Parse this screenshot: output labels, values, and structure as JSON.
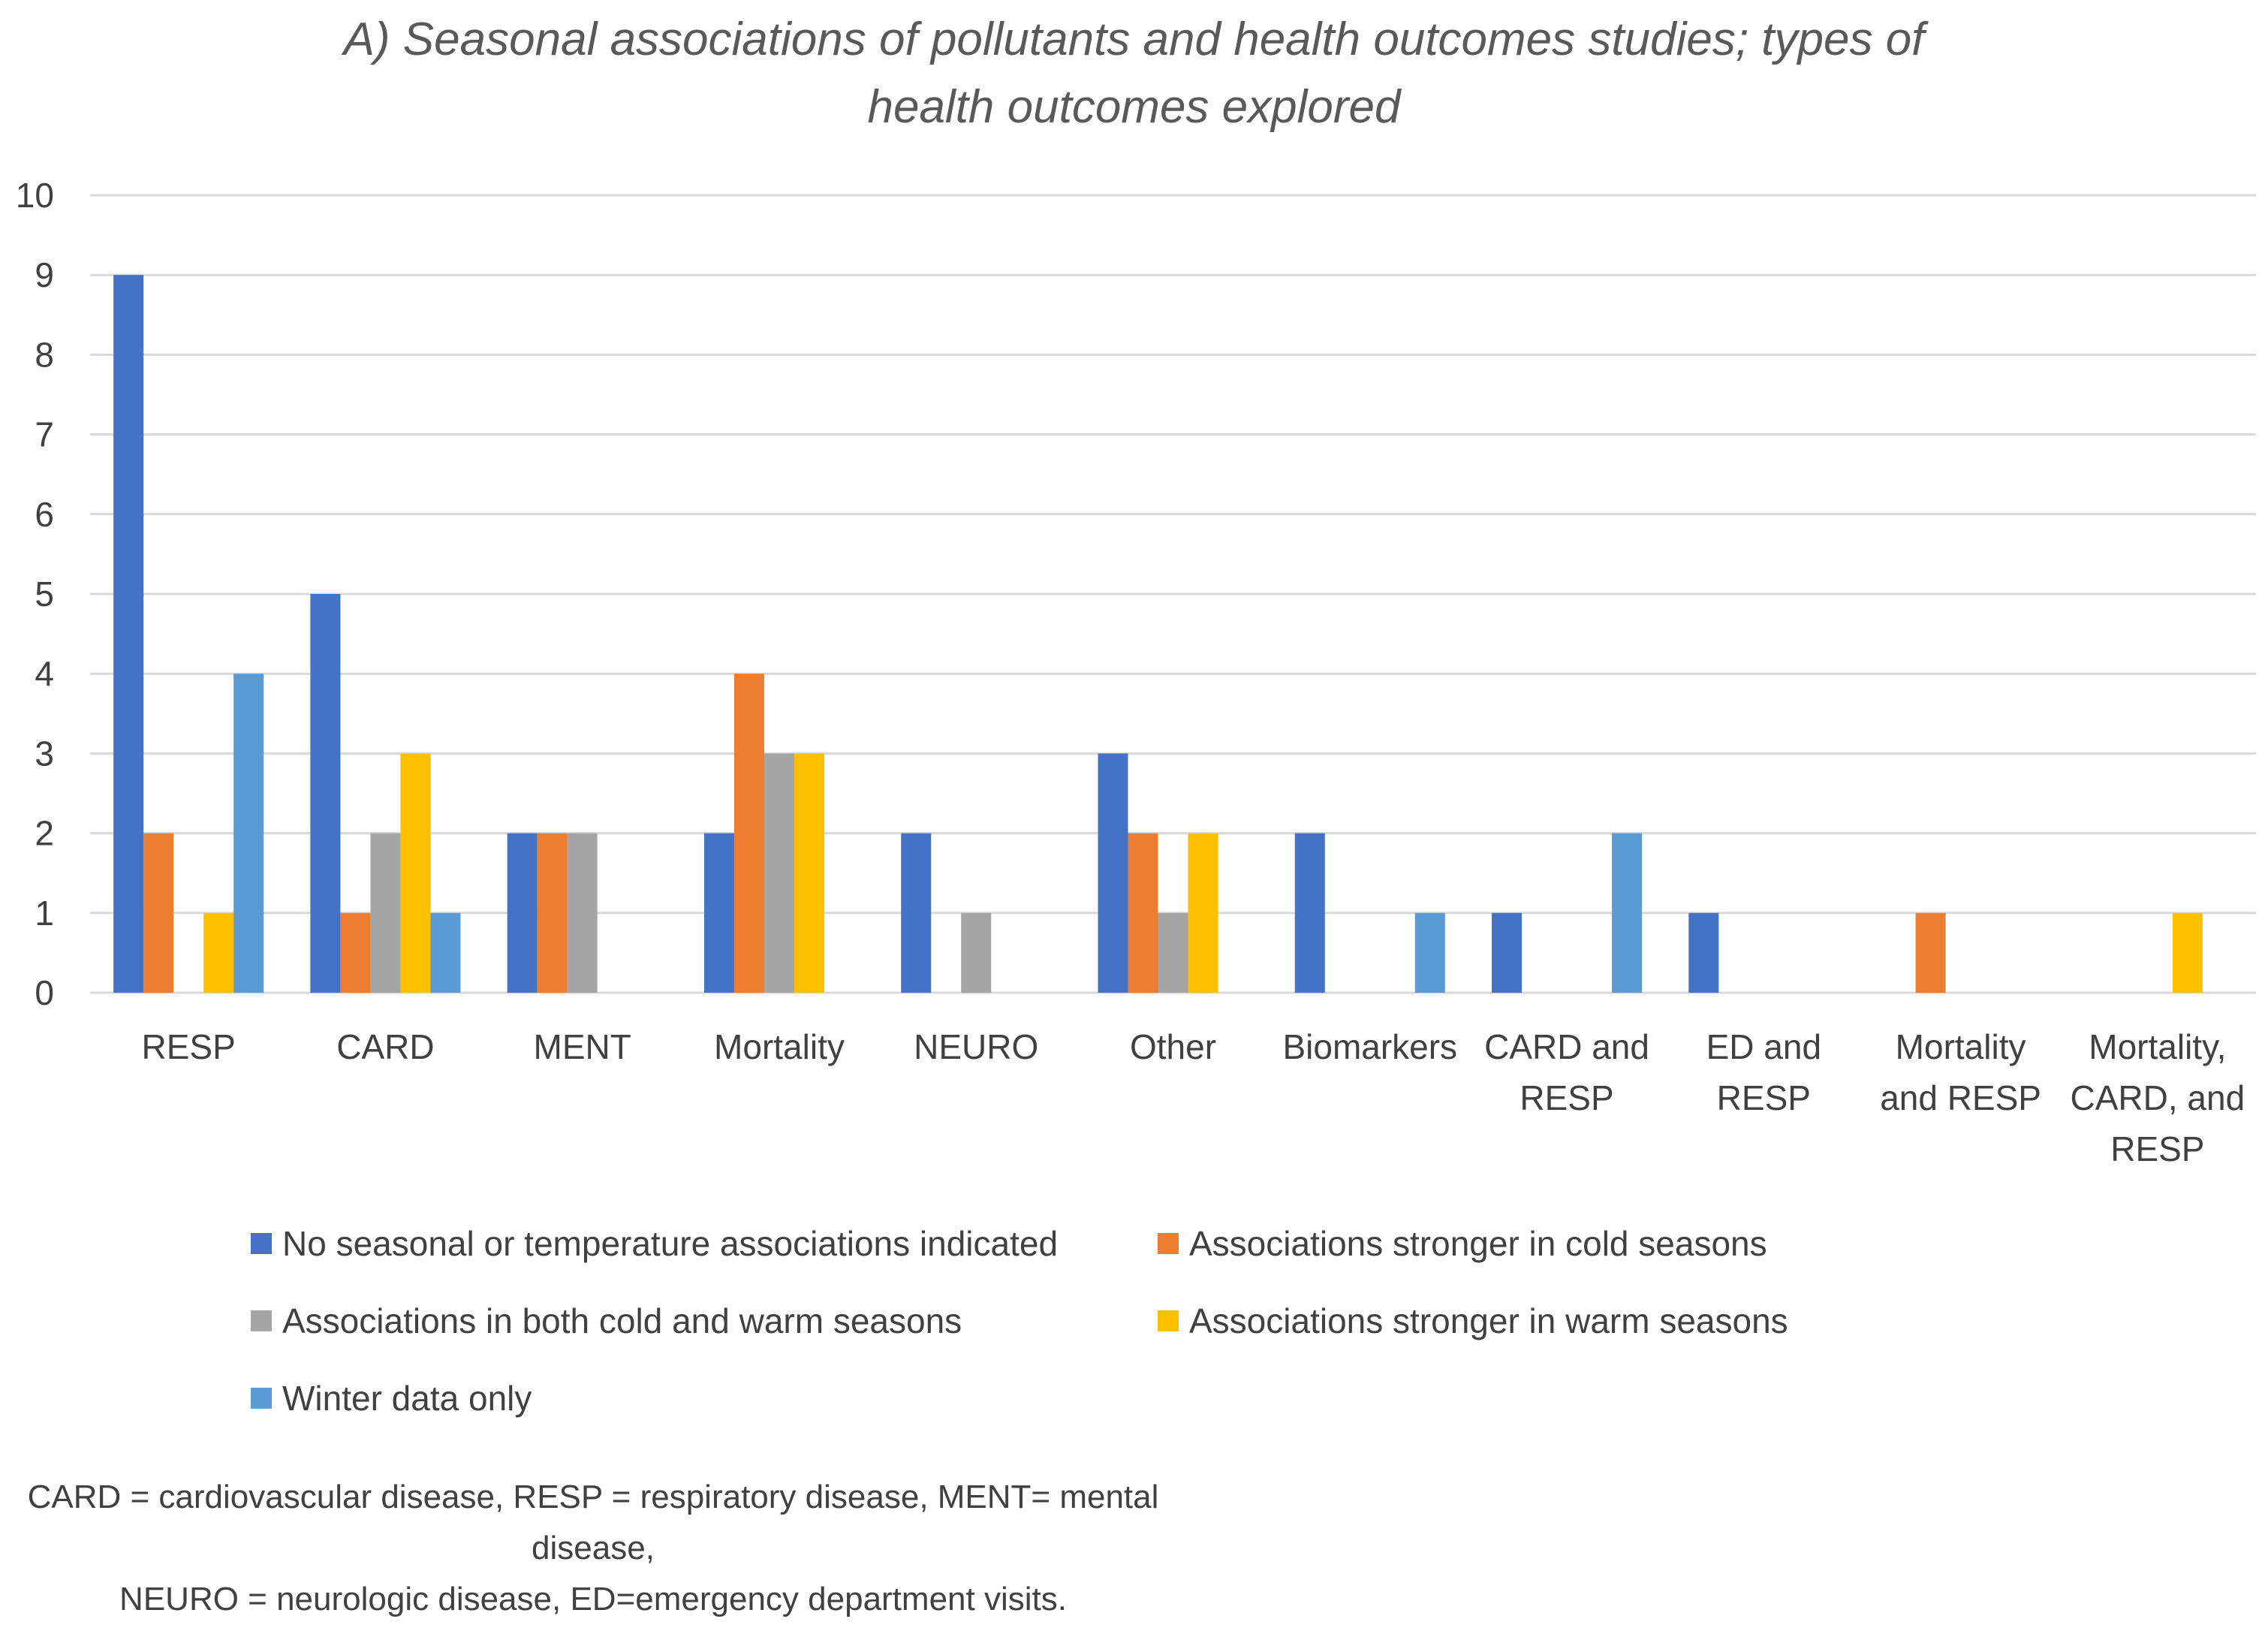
{
  "chart_data": {
    "type": "bar",
    "title_lines": [
      "A) Seasonal associations of pollutants and  health outcomes studies; types of",
      "health outcomes explored"
    ],
    "categories": [
      [
        "RESP"
      ],
      [
        "CARD"
      ],
      [
        "MENT"
      ],
      [
        "Mortality"
      ],
      [
        "NEURO"
      ],
      [
        "Other"
      ],
      [
        "Biomarkers"
      ],
      [
        "CARD and",
        "RESP"
      ],
      [
        "ED and",
        "RESP"
      ],
      [
        "Mortality",
        "and RESP"
      ],
      [
        "Mortality,",
        "CARD, and",
        "RESP"
      ]
    ],
    "series": [
      {
        "name": "No seasonal or temperature associations indicated",
        "color": "#4472C4",
        "values": [
          9,
          5,
          2,
          2,
          2,
          3,
          2,
          1,
          1,
          0,
          0
        ]
      },
      {
        "name": "Associations stronger in cold seasons",
        "color": "#ED7D31",
        "values": [
          2,
          1,
          2,
          4,
          0,
          2,
          0,
          0,
          0,
          1,
          0
        ]
      },
      {
        "name": "Associations in both cold and warm seasons",
        "color": "#A5A5A5",
        "values": [
          0,
          2,
          2,
          3,
          1,
          1,
          0,
          0,
          0,
          0,
          0
        ]
      },
      {
        "name": "Associations stronger in warm seasons",
        "color": "#FFC000",
        "values": [
          1,
          3,
          0,
          3,
          0,
          2,
          0,
          0,
          0,
          0,
          1
        ]
      },
      {
        "name": "Winter data only",
        "color": "#5B9BD5",
        "values": [
          4,
          1,
          0,
          0,
          0,
          0,
          1,
          2,
          0,
          0,
          0
        ]
      }
    ],
    "ylim": [
      0,
      10
    ],
    "yticks": [
      0,
      1,
      2,
      3,
      4,
      5,
      6,
      7,
      8,
      9,
      10
    ],
    "grid": true,
    "xlabel": "",
    "ylabel": "",
    "legend_position": "bottom",
    "footnote_lines": [
      "CARD = cardiovascular disease, RESP = respiratory disease, MENT= mental disease,",
      "NEURO = neurologic disease, ED=emergency department visits."
    ]
  }
}
